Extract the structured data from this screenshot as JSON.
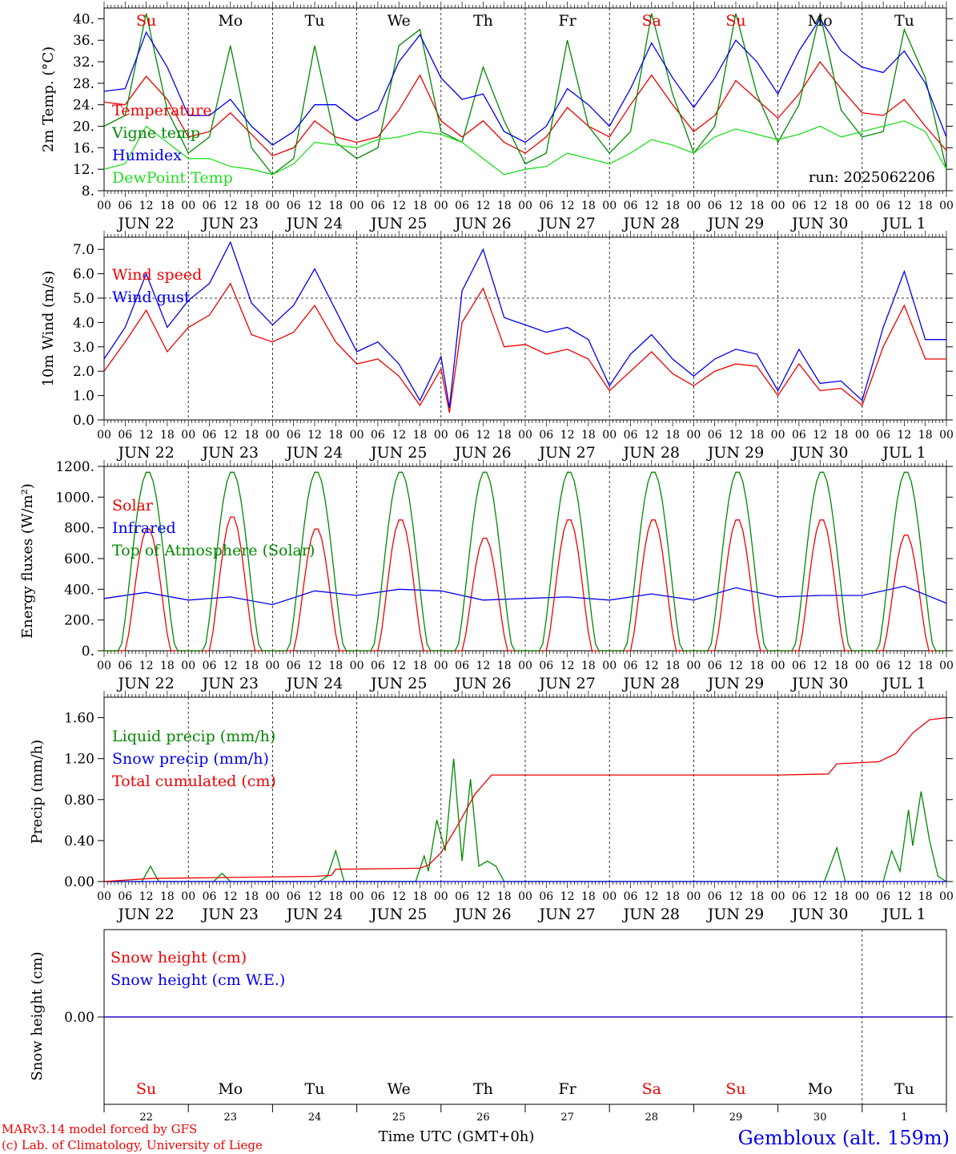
{
  "figure": {
    "run_label": "run: 2025062206",
    "footer_left_1": "MARv3.14 model forced by GFS",
    "footer_left_2": "(c) Lab. of Climatology, University of Liege",
    "footer_center": "Time UTC (GMT+0h)",
    "footer_right": "Gembloux (alt. 159m)",
    "colors": {
      "red": "#ee0000",
      "blue": "#0000ee",
      "green": "#008800",
      "lightgreen": "#22dd22",
      "text": "#000000",
      "weekend": "#ee0000"
    }
  },
  "time_axis": {
    "hour_ticks": [
      "00",
      "06",
      "12",
      "18",
      "00",
      "06",
      "12",
      "18",
      "00",
      "06",
      "12",
      "18",
      "00",
      "06",
      "12",
      "18",
      "00",
      "06",
      "12",
      "18",
      "00",
      "06",
      "12",
      "18",
      "00",
      "06",
      "12",
      "18",
      "00",
      "06",
      "12",
      "18",
      "00",
      "06",
      "12",
      "18",
      "00",
      "06",
      "12",
      "18",
      "00"
    ],
    "dates": [
      "JUN 22",
      "JUN 23",
      "JUN 24",
      "JUN 25",
      "JUN 26",
      "JUN 27",
      "JUN 28",
      "JUN 29",
      "JUN 30",
      "JUL  1"
    ],
    "weekdays": [
      {
        "label": "Su",
        "weekend": true
      },
      {
        "label": "Mo",
        "weekend": false
      },
      {
        "label": "Tu",
        "weekend": false
      },
      {
        "label": "We",
        "weekend": false
      },
      {
        "label": "Th",
        "weekend": false
      },
      {
        "label": "Fr",
        "weekend": false
      },
      {
        "label": "Sa",
        "weekend": true
      },
      {
        "label": "Su",
        "weekend": true
      },
      {
        "label": "Mo",
        "weekend": false
      },
      {
        "label": "Tu",
        "weekend": false
      }
    ],
    "day_numbers": [
      "22",
      "23",
      "24",
      "25",
      "26",
      "27",
      "28",
      "29",
      "30",
      "1"
    ]
  },
  "chart_data": [
    {
      "type": "line",
      "ylabel": "2m Temp. (°C)",
      "ylim": [
        8,
        42
      ],
      "yticks": [
        "8.",
        "12.",
        "16.",
        "20.",
        "24.",
        "28.",
        "32.",
        "36.",
        "40."
      ],
      "ytick_values": [
        8,
        12,
        16,
        20,
        24,
        28,
        32,
        36,
        40
      ],
      "x_unit": "days since JUN 22 00 UTC",
      "xlim": [
        0,
        10
      ],
      "series": [
        {
          "name": "Temperature",
          "color": "#ee0000",
          "x": [
            0,
            0.25,
            0.5,
            0.75,
            1,
            1.25,
            1.5,
            1.75,
            2,
            2.25,
            2.5,
            2.75,
            3,
            3.25,
            3.5,
            3.75,
            4,
            4.25,
            4.5,
            4.75,
            5,
            5.25,
            5.5,
            5.75,
            6,
            6.25,
            6.5,
            6.75,
            7,
            7.25,
            7.5,
            7.75,
            8,
            8.25,
            8.5,
            8.75,
            9,
            9.25,
            9.5,
            9.75,
            10
          ],
          "y": [
            24.5,
            24,
            29.3,
            25,
            18,
            19,
            22.5,
            18.5,
            14.5,
            16,
            21,
            18,
            17,
            18,
            23,
            29.5,
            21,
            18,
            21,
            17,
            15,
            18,
            23.5,
            20,
            18,
            24,
            29.5,
            24,
            19,
            22,
            28.5,
            25,
            21.5,
            26,
            32,
            27,
            22.5,
            22,
            25,
            20,
            15.5
          ]
        },
        {
          "name": "Vigne temp",
          "color": "#008800",
          "x": [
            0,
            0.25,
            0.5,
            0.75,
            1,
            1.25,
            1.5,
            1.75,
            2,
            2.25,
            2.5,
            2.75,
            3,
            3.25,
            3.5,
            3.75,
            4,
            4.25,
            4.5,
            4.75,
            5,
            5.25,
            5.5,
            5.75,
            6,
            6.25,
            6.5,
            6.75,
            7,
            7.25,
            7.5,
            7.75,
            8,
            8.25,
            8.5,
            8.75,
            9,
            9.25,
            9.5,
            9.75,
            10
          ],
          "y": [
            20,
            22,
            41,
            23,
            15,
            18,
            35,
            16,
            11,
            14,
            35,
            17,
            14,
            16,
            35,
            38,
            19,
            17,
            31,
            21,
            13,
            15,
            36,
            20,
            15,
            19,
            41,
            26,
            15,
            20,
            41,
            26,
            17,
            24,
            41,
            23,
            18,
            19,
            38,
            29,
            12
          ]
        },
        {
          "name": "Humidex",
          "color": "#0000ee",
          "x": [
            0,
            0.25,
            0.5,
            0.75,
            1,
            1.25,
            1.5,
            1.75,
            2,
            2.25,
            2.5,
            2.75,
            3,
            3.25,
            3.5,
            3.75,
            4,
            4.25,
            4.5,
            4.75,
            5,
            5.25,
            5.5,
            5.75,
            6,
            6.25,
            6.5,
            6.75,
            7,
            7.25,
            7.5,
            7.75,
            8,
            8.25,
            8.5,
            8.75,
            9,
            9.25,
            9.5,
            9.75,
            10
          ],
          "y": [
            26.5,
            27,
            37.5,
            31,
            22,
            22,
            25,
            20,
            16.5,
            19,
            24,
            24,
            21,
            23,
            32,
            37,
            29,
            25,
            26,
            19,
            17,
            20,
            27,
            24,
            20,
            27,
            35.5,
            29,
            23.5,
            29,
            36,
            32,
            26,
            34,
            40,
            34,
            31,
            30,
            34,
            28,
            18
          ]
        },
        {
          "name": "DewPoint Temp",
          "color": "#22dd22",
          "x": [
            0,
            0.25,
            0.5,
            0.75,
            1,
            1.25,
            1.5,
            1.75,
            2,
            2.25,
            2.5,
            2.75,
            3,
            3.25,
            3.5,
            3.75,
            4,
            4.25,
            4.5,
            4.75,
            5,
            5.25,
            5.5,
            5.75,
            6,
            6.25,
            6.5,
            6.75,
            7,
            7.25,
            7.5,
            7.75,
            8,
            8.25,
            8.5,
            8.75,
            9,
            9.25,
            9.5,
            9.75,
            10
          ],
          "y": [
            12,
            13,
            20,
            17,
            14,
            14,
            12.5,
            12,
            11,
            13,
            17,
            16.5,
            16,
            17.5,
            18,
            19,
            18.5,
            17,
            14,
            11,
            12,
            12.5,
            15,
            14,
            13,
            15,
            17.5,
            16.5,
            15,
            18,
            19.5,
            18.5,
            17.5,
            18.5,
            20,
            18,
            19,
            20,
            21,
            19,
            12
          ]
        }
      ]
    },
    {
      "type": "line",
      "ylabel": "10m Wind (m/s)",
      "ylim": [
        0,
        7.5
      ],
      "yticks": [
        "0.0",
        "1.0",
        "2.0",
        "3.0",
        "4.0",
        "5.0",
        "6.0",
        "7.0"
      ],
      "ytick_values": [
        0,
        1,
        2,
        3,
        4,
        5,
        6,
        7
      ],
      "reference_line": 5.0,
      "x_unit": "days since JUN 22 00 UTC",
      "xlim": [
        0,
        10
      ],
      "series": [
        {
          "name": "Wind speed",
          "color": "#ee0000",
          "x": [
            0,
            0.25,
            0.5,
            0.75,
            1,
            1.25,
            1.5,
            1.75,
            2,
            2.25,
            2.5,
            2.75,
            3,
            3.25,
            3.5,
            3.75,
            4,
            4.1,
            4.25,
            4.5,
            4.75,
            5,
            5.25,
            5.5,
            5.75,
            6,
            6.25,
            6.5,
            6.75,
            7,
            7.25,
            7.5,
            7.75,
            8,
            8.25,
            8.5,
            8.75,
            9,
            9.25,
            9.5,
            9.75,
            10
          ],
          "y": [
            2,
            3.2,
            4.5,
            2.8,
            3.8,
            4.3,
            5.6,
            3.5,
            3.2,
            3.6,
            4.7,
            3.2,
            2.3,
            2.5,
            1.8,
            0.6,
            2.1,
            0.3,
            4.0,
            5.4,
            3.0,
            3.1,
            2.7,
            2.9,
            2.5,
            1.2,
            2.0,
            2.8,
            1.9,
            1.4,
            2.0,
            2.3,
            2.2,
            1.0,
            2.3,
            1.2,
            1.3,
            0.6,
            3.0,
            4.7,
            2.5,
            2.5
          ]
        },
        {
          "name": "Wind gust",
          "color": "#0000ee",
          "x": [
            0,
            0.25,
            0.5,
            0.75,
            1,
            1.25,
            1.5,
            1.75,
            2,
            2.25,
            2.5,
            2.75,
            3,
            3.25,
            3.5,
            3.75,
            4,
            4.1,
            4.25,
            4.5,
            4.75,
            5,
            5.25,
            5.5,
            5.75,
            6,
            6.25,
            6.5,
            6.75,
            7,
            7.25,
            7.5,
            7.75,
            8,
            8.25,
            8.5,
            8.75,
            9,
            9.25,
            9.5,
            9.75,
            10
          ],
          "y": [
            2.5,
            3.8,
            6.0,
            3.8,
            4.9,
            5.6,
            7.3,
            4.8,
            3.9,
            4.7,
            6.2,
            4.5,
            2.8,
            3.2,
            2.3,
            0.8,
            2.6,
            0.5,
            5.3,
            7.0,
            4.2,
            3.9,
            3.6,
            3.8,
            3.3,
            1.4,
            2.7,
            3.5,
            2.5,
            1.8,
            2.5,
            2.9,
            2.7,
            1.2,
            2.9,
            1.5,
            1.6,
            0.8,
            3.8,
            6.1,
            3.3,
            3.3
          ]
        }
      ]
    },
    {
      "type": "line",
      "ylabel": "Energy fluxes (W/m²)",
      "ylim": [
        0,
        1200
      ],
      "yticks": [
        "0.",
        "200.",
        "400.",
        "600.",
        "800.",
        "1000.",
        "1200."
      ],
      "ytick_values": [
        0,
        200,
        400,
        600,
        800,
        1000,
        1200
      ],
      "x_unit": "days since JUN 22 00 UTC",
      "xlim": [
        0,
        10
      ],
      "series": [
        {
          "name": "Solar",
          "color": "#ee0000",
          "daily_peaks": [
            800,
            880,
            800,
            860,
            740,
            860,
            860,
            860,
            860,
            760
          ],
          "peak_hour_utc": 12.5
        },
        {
          "name": "Infrared",
          "color": "#0000ee",
          "x": [
            0,
            0.5,
            1,
            1.5,
            2,
            2.5,
            3,
            3.5,
            4,
            4.5,
            5,
            5.5,
            6,
            6.5,
            7,
            7.5,
            8,
            8.5,
            9,
            9.5,
            10
          ],
          "y": [
            340,
            380,
            330,
            350,
            300,
            390,
            360,
            400,
            390,
            330,
            340,
            350,
            330,
            370,
            330,
            410,
            350,
            360,
            360,
            420,
            310
          ]
        },
        {
          "name": "Top of Atmosphere (Solar)",
          "color": "#008800",
          "daily_peaks": [
            1170,
            1170,
            1170,
            1170,
            1170,
            1170,
            1170,
            1170,
            1170,
            1170
          ],
          "peak_hour_utc": 12.5
        }
      ]
    },
    {
      "type": "line",
      "ylabel": "Precip (mm/h)",
      "ylim": [
        0,
        1.8
      ],
      "yticks": [
        "0.00",
        "0.40",
        "0.80",
        "1.20",
        "1.60"
      ],
      "ytick_values": [
        0,
        0.4,
        0.8,
        1.2,
        1.6
      ],
      "x_unit": "days since JUN 22 00 UTC",
      "xlim": [
        0,
        10
      ],
      "series": [
        {
          "name": "Liquid precip (mm/h)",
          "color": "#008800",
          "x": [
            0,
            0.45,
            0.55,
            0.65,
            1,
            1.3,
            1.4,
            1.5,
            2,
            2.55,
            2.65,
            2.75,
            2.85,
            3,
            3.7,
            3.8,
            3.85,
            3.95,
            4.05,
            4.15,
            4.25,
            4.35,
            4.45,
            4.55,
            4.65,
            4.75,
            5,
            6,
            8,
            8.55,
            8.7,
            8.8,
            9,
            9.25,
            9.35,
            9.45,
            9.55,
            9.6,
            9.7,
            9.8,
            9.9,
            10
          ],
          "y": [
            0,
            0,
            0.15,
            0,
            0,
            0,
            0.08,
            0,
            0,
            0,
            0.05,
            0.3,
            0,
            0,
            0,
            0.25,
            0.1,
            0.6,
            0.3,
            1.2,
            0.2,
            1.0,
            0.15,
            0.2,
            0.15,
            0,
            0,
            0,
            0,
            0,
            0.33,
            0,
            0,
            0,
            0.3,
            0.1,
            0.7,
            0.35,
            0.88,
            0.4,
            0.05,
            0
          ]
        },
        {
          "name": "Snow precip (mm/h)",
          "color": "#0000ee",
          "x": [
            0,
            10
          ],
          "y": [
            0,
            0
          ]
        },
        {
          "name": "Total cumulated (cm)",
          "color": "#ee0000",
          "x": [
            0,
            0.55,
            1.5,
            2.5,
            2.7,
            2.75,
            3.75,
            3.85,
            4,
            4.2,
            4.4,
            4.6,
            5,
            8,
            8.6,
            8.7,
            9.2,
            9.4,
            9.6,
            9.8,
            10
          ],
          "y": [
            0,
            0.03,
            0.04,
            0.05,
            0.06,
            0.12,
            0.13,
            0.16,
            0.28,
            0.55,
            0.85,
            1.04,
            1.04,
            1.04,
            1.05,
            1.15,
            1.17,
            1.25,
            1.45,
            1.58,
            1.6
          ]
        }
      ]
    },
    {
      "type": "line",
      "ylabel": "Snow height (cm)",
      "ylim": [
        -1,
        1
      ],
      "yticks": [
        "0.00"
      ],
      "ytick_values": [
        0
      ],
      "x_unit": "days since JUN 22 00 UTC",
      "xlim": [
        0,
        10
      ],
      "series": [
        {
          "name": "Snow height (cm)",
          "color": "#ee0000",
          "x": [
            0,
            10
          ],
          "y": [
            0,
            0
          ]
        },
        {
          "name": "Snow height (cm W.E.)",
          "color": "#0000ee",
          "x": [
            0,
            10
          ],
          "y": [
            0,
            0
          ]
        }
      ]
    }
  ]
}
